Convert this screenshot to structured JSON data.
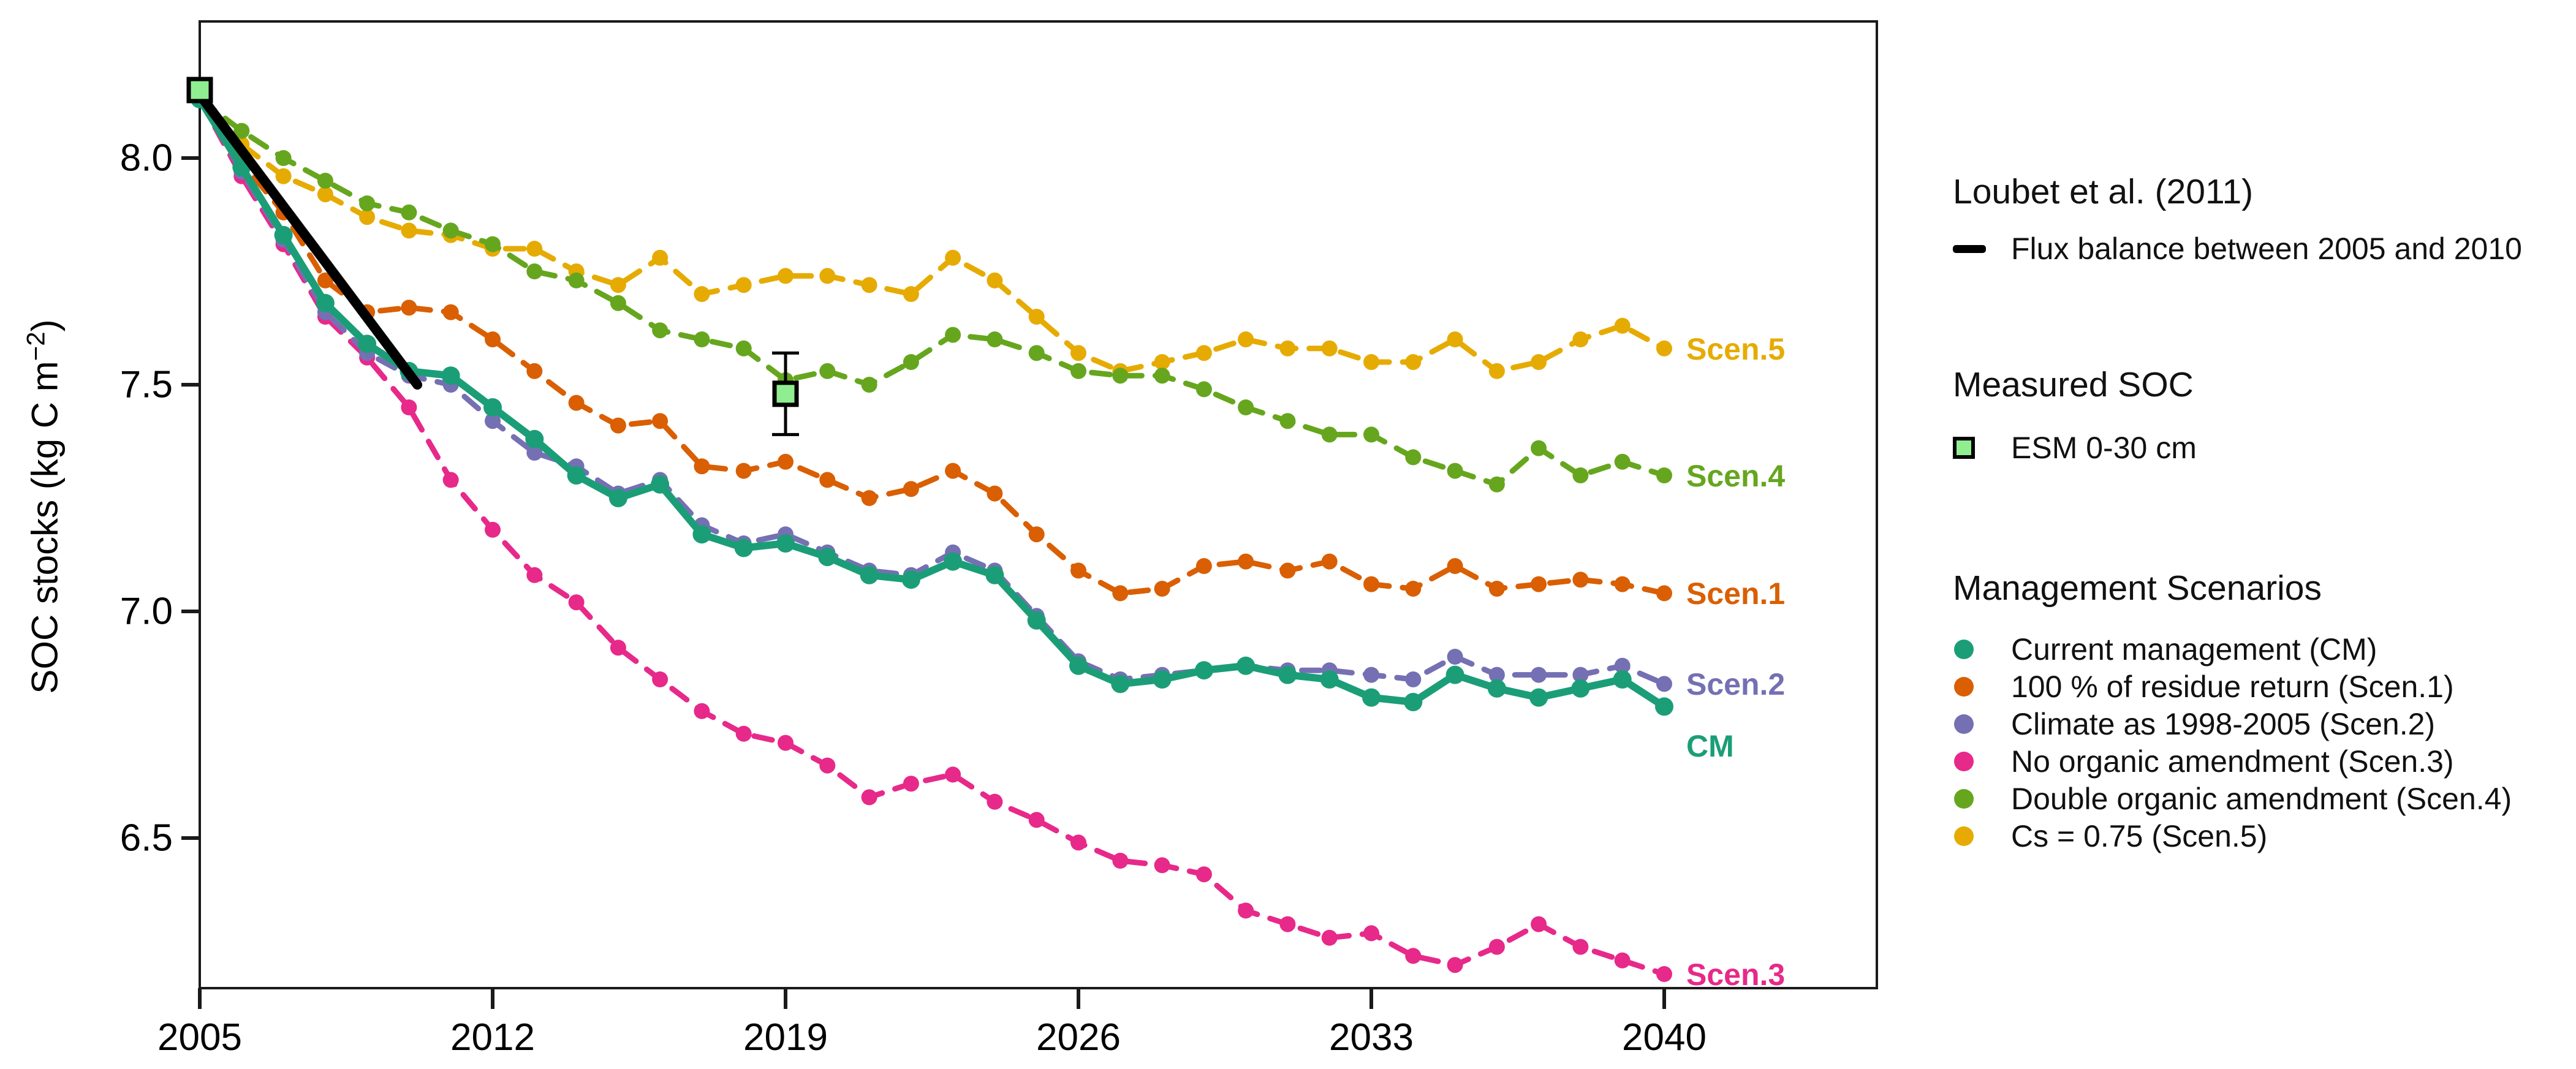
{
  "chart_data": {
    "type": "line",
    "title": "",
    "xlabel": "",
    "ylabel_pre": "SOC stocks (kg C m",
    "ylabel_sup": "−2",
    "ylabel_post": ")",
    "grid": false,
    "legend_position": "right",
    "xlim": [
      2005,
      2045
    ],
    "ylim": [
      6.17,
      8.31
    ],
    "x_ticks": [
      2005,
      2012,
      2019,
      2026,
      2033,
      2040
    ],
    "x_tick_labels": [
      "2005",
      "2012",
      "2019",
      "2026",
      "2033",
      "2040"
    ],
    "y_ticks": [
      8.0,
      7.5,
      7.0,
      6.5
    ],
    "y_tick_labels": [
      "8.0",
      "7.5",
      "7.0",
      "6.5"
    ],
    "years": [
      2005,
      2006,
      2007,
      2008,
      2009,
      2010,
      2011,
      2012,
      2013,
      2014,
      2015,
      2016,
      2017,
      2018,
      2019,
      2020,
      2021,
      2022,
      2023,
      2024,
      2025,
      2026,
      2027,
      2028,
      2029,
      2030,
      2031,
      2032,
      2033,
      2034,
      2035,
      2036,
      2037,
      2038,
      2039,
      2040
    ],
    "series": [
      {
        "name": "No organic amendment (Scen.3)",
        "end_label": "Scen.3",
        "color": "#E7298A",
        "dashed": true,
        "width": 9,
        "marker_r": 13,
        "label_dy": 0,
        "values": [
          8.13,
          7.96,
          7.81,
          7.65,
          7.56,
          7.45,
          7.29,
          7.18,
          7.08,
          7.02,
          6.92,
          6.85,
          6.78,
          6.73,
          6.71,
          6.66,
          6.59,
          6.62,
          6.64,
          6.58,
          6.54,
          6.49,
          6.45,
          6.44,
          6.42,
          6.34,
          6.31,
          6.28,
          6.29,
          6.24,
          6.22,
          6.26,
          6.31,
          6.26,
          6.23,
          6.2
        ]
      },
      {
        "name": "100 % of residue return (Scen.1)",
        "end_label": "Scen.1",
        "color": "#D95F02",
        "dashed": true,
        "width": 9,
        "marker_r": 13,
        "label_dy": 0,
        "values": [
          8.13,
          7.99,
          7.88,
          7.73,
          7.66,
          7.67,
          7.66,
          7.6,
          7.53,
          7.46,
          7.41,
          7.42,
          7.32,
          7.31,
          7.33,
          7.29,
          7.25,
          7.27,
          7.31,
          7.26,
          7.17,
          7.09,
          7.04,
          7.05,
          7.1,
          7.11,
          7.09,
          7.11,
          7.06,
          7.05,
          7.1,
          7.05,
          7.06,
          7.07,
          7.06,
          7.04
        ]
      },
      {
        "name": "Cs = 0.75 (Scen.5)",
        "end_label": "Scen.5",
        "color": "#E6AB02",
        "dashed": true,
        "width": 9,
        "marker_r": 13,
        "label_dy": 0,
        "values": [
          8.13,
          8.03,
          7.96,
          7.92,
          7.87,
          7.84,
          7.83,
          7.8,
          7.8,
          7.75,
          7.72,
          7.78,
          7.7,
          7.72,
          7.74,
          7.74,
          7.72,
          7.7,
          7.78,
          7.73,
          7.65,
          7.57,
          7.53,
          7.55,
          7.57,
          7.6,
          7.58,
          7.58,
          7.55,
          7.55,
          7.6,
          7.53,
          7.55,
          7.6,
          7.63,
          7.58
        ]
      },
      {
        "name": "Double organic amendment (Scen.4)",
        "end_label": "Scen.4",
        "color": "#66A61E",
        "dashed": true,
        "width": 9,
        "marker_r": 13,
        "label_dy": 0,
        "values": [
          8.13,
          8.06,
          8.0,
          7.95,
          7.9,
          7.88,
          7.84,
          7.81,
          7.75,
          7.73,
          7.68,
          7.62,
          7.6,
          7.58,
          7.51,
          7.53,
          7.5,
          7.55,
          7.61,
          7.6,
          7.57,
          7.53,
          7.52,
          7.52,
          7.49,
          7.45,
          7.42,
          7.39,
          7.39,
          7.34,
          7.31,
          7.28,
          7.36,
          7.3,
          7.33,
          7.3
        ]
      },
      {
        "name": "Climate as 1998-2005 (Scen.2)",
        "end_label": "Scen.2",
        "color": "#7570B3",
        "dashed": true,
        "width": 9,
        "marker_r": 13,
        "label_dy": 0,
        "values": [
          8.13,
          7.97,
          7.82,
          7.66,
          7.57,
          7.52,
          7.5,
          7.42,
          7.35,
          7.32,
          7.26,
          7.29,
          7.19,
          7.15,
          7.17,
          7.13,
          7.09,
          7.08,
          7.13,
          7.09,
          6.99,
          6.89,
          6.85,
          6.86,
          6.87,
          6.88,
          6.87,
          6.87,
          6.86,
          6.85,
          6.9,
          6.86,
          6.86,
          6.86,
          6.88,
          6.84
        ]
      },
      {
        "name": "Current management (CM)",
        "end_label": "CM",
        "color": "#1B9E77",
        "dashed": false,
        "width": 12,
        "marker_r": 15,
        "label_dy": 64,
        "values": [
          8.13,
          7.98,
          7.83,
          7.68,
          7.59,
          7.53,
          7.52,
          7.45,
          7.38,
          7.3,
          7.25,
          7.28,
          7.17,
          7.14,
          7.15,
          7.12,
          7.08,
          7.07,
          7.11,
          7.08,
          6.98,
          6.88,
          6.84,
          6.85,
          6.87,
          6.88,
          6.86,
          6.85,
          6.81,
          6.8,
          6.86,
          6.83,
          6.81,
          6.83,
          6.85,
          6.79
        ]
      }
    ],
    "flux_line": {
      "label": "Flux balance between 2005 and 2010",
      "color": "#000000",
      "x": [
        2005,
        2010.2
      ],
      "y": [
        8.14,
        7.5
      ]
    },
    "measured": {
      "label": "ESM 0-30 cm",
      "fill": "#90EE90",
      "border": "#000000",
      "points": [
        {
          "year": 2005,
          "value": 8.15,
          "err": 0
        },
        {
          "year": 2019,
          "value": 7.48,
          "err": 0.09
        }
      ]
    }
  },
  "legend": {
    "sections": [
      {
        "title": "Loubet et al. (2011)",
        "items": [
          {
            "marker": "line",
            "color": "#000000",
            "label": "Flux balance between 2005 and 2010"
          }
        ]
      },
      {
        "title": "Measured SOC",
        "items": [
          {
            "marker": "square",
            "color": "#90EE90",
            "border": "#000000",
            "label": "ESM 0-30 cm"
          }
        ]
      },
      {
        "title": "Management Scenarios",
        "items": [
          {
            "marker": "dot",
            "color": "#1B9E77",
            "label": "Current management (CM)"
          },
          {
            "marker": "dot",
            "color": "#D95F02",
            "label": "100 % of residue return (Scen.1)"
          },
          {
            "marker": "dot",
            "color": "#7570B3",
            "label": "Climate as 1998-2005 (Scen.2)"
          },
          {
            "marker": "dot",
            "color": "#E7298A",
            "label": "No organic amendment (Scen.3)"
          },
          {
            "marker": "dot",
            "color": "#66A61E",
            "label": "Double organic amendment (Scen.4)"
          },
          {
            "marker": "dot",
            "color": "#E6AB02",
            "label": "Cs = 0.75 (Scen.5)"
          }
        ]
      }
    ]
  }
}
